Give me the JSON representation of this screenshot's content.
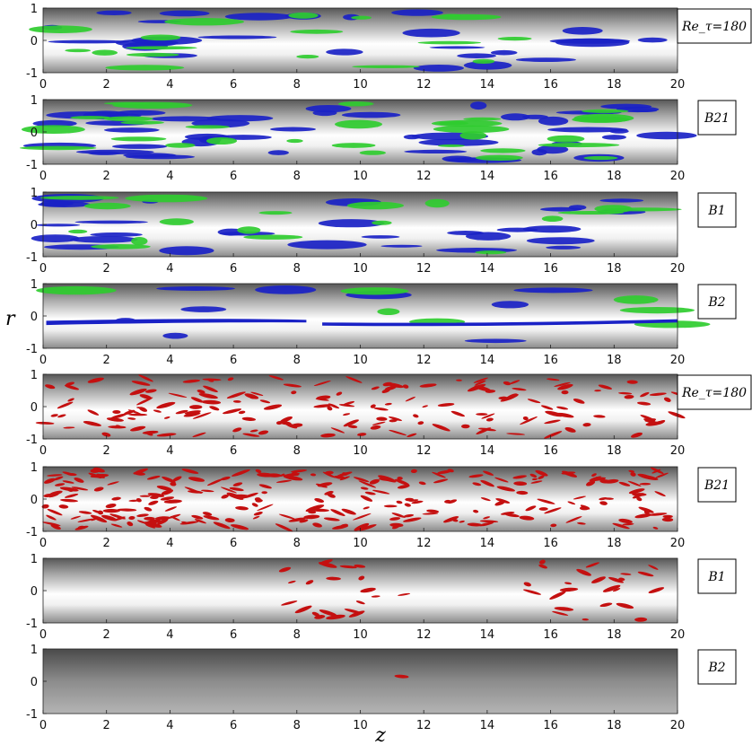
{
  "figure": {
    "xlabel": "z",
    "ylabel": "r"
  },
  "colors": {
    "green": "#2fcc2f",
    "blue": "#1a22c6",
    "red": "#c41010",
    "pipe_dark": "#5a5a5a",
    "pipe_light": "#ffffff"
  },
  "chart_data": [
    {
      "type": "other",
      "panel": 1,
      "label": "Re_τ=180",
      "structures": [
        "green",
        "blue"
      ],
      "xlim": [
        0,
        20
      ],
      "ylim": [
        -1,
        1
      ],
      "xticks": [
        "0",
        "2",
        "4",
        "6",
        "8",
        "10",
        "12",
        "14",
        "16",
        "18",
        "20"
      ],
      "yticks": [
        "1",
        "0",
        "-1"
      ]
    },
    {
      "type": "other",
      "panel": 2,
      "label": "B21",
      "structures": [
        "green",
        "blue"
      ],
      "xlim": [
        0,
        20
      ],
      "ylim": [
        -1,
        1
      ],
      "xticks": [
        "0",
        "2",
        "4",
        "6",
        "8",
        "10",
        "12",
        "14",
        "16",
        "18",
        "20"
      ],
      "yticks": [
        "1",
        "0",
        "-1"
      ]
    },
    {
      "type": "other",
      "panel": 3,
      "label": "B1",
      "structures": [
        "green",
        "blue"
      ],
      "xlim": [
        0,
        20
      ],
      "ylim": [
        -1,
        1
      ],
      "xticks": [
        "0",
        "2",
        "4",
        "6",
        "8",
        "10",
        "12",
        "14",
        "16",
        "18",
        "20"
      ],
      "yticks": [
        "1",
        "0",
        "-1"
      ]
    },
    {
      "type": "other",
      "panel": 4,
      "label": "B2",
      "structures": [
        "green",
        "blue"
      ],
      "xlim": [
        0,
        20
      ],
      "ylim": [
        -1,
        1
      ],
      "xticks": [
        "0",
        "2",
        "4",
        "6",
        "8",
        "10",
        "12",
        "14",
        "16",
        "18",
        "20"
      ],
      "yticks": [
        "1",
        "0",
        "-1"
      ]
    },
    {
      "type": "other",
      "panel": 5,
      "label": "Re_τ=180",
      "structures": [
        "red"
      ],
      "xlim": [
        0,
        20
      ],
      "ylim": [
        -1,
        1
      ],
      "xticks": [
        "0",
        "2",
        "4",
        "6",
        "8",
        "10",
        "12",
        "14",
        "16",
        "18",
        "20"
      ],
      "yticks": [
        "1",
        "0",
        "-1"
      ]
    },
    {
      "type": "other",
      "panel": 6,
      "label": "B21",
      "structures": [
        "red"
      ],
      "xlim": [
        0,
        20
      ],
      "ylim": [
        -1,
        1
      ],
      "xticks": [
        "0",
        "2",
        "4",
        "6",
        "8",
        "10",
        "12",
        "14",
        "16",
        "18",
        "20"
      ],
      "yticks": [
        "1",
        "0",
        "-1"
      ]
    },
    {
      "type": "other",
      "panel": 7,
      "label": "B1",
      "structures": [
        "red"
      ],
      "xlim": [
        0,
        20
      ],
      "ylim": [
        -1,
        1
      ],
      "xticks": [
        "0",
        "2",
        "4",
        "6",
        "8",
        "10",
        "12",
        "14",
        "16",
        "18",
        "20"
      ],
      "yticks": [
        "1",
        "0",
        "-1"
      ]
    },
    {
      "type": "other",
      "panel": 8,
      "label": "B2",
      "structures": [
        "red"
      ],
      "xlim": [
        0,
        20
      ],
      "ylim": [
        -1,
        1
      ],
      "xticks": [
        "0",
        "2",
        "4",
        "6",
        "8",
        "10",
        "12",
        "14",
        "16",
        "18",
        "20"
      ],
      "yticks": [
        "1",
        "0",
        "-1"
      ]
    }
  ]
}
